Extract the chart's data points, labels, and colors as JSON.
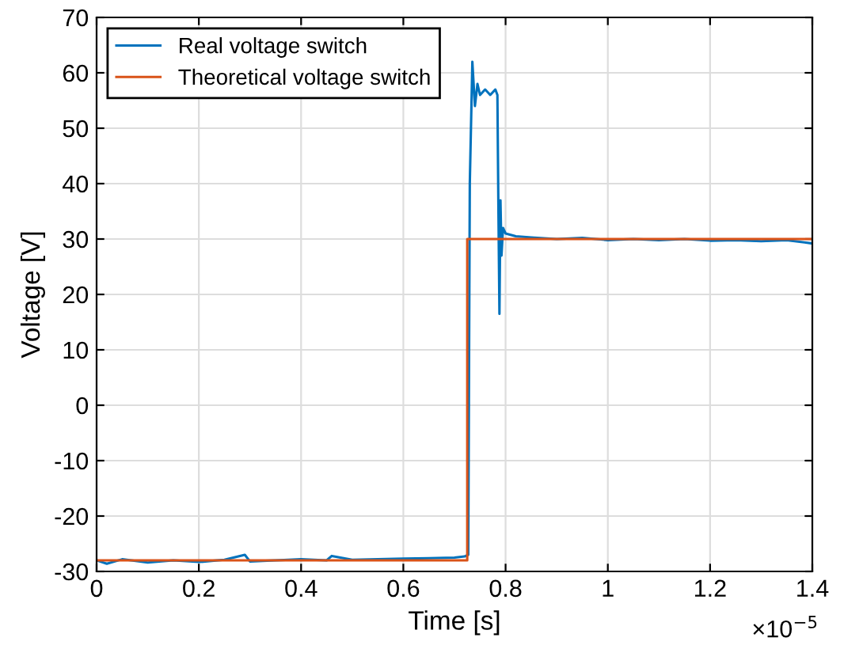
{
  "chart_data": {
    "type": "line",
    "xlabel": "Time [s]",
    "ylabel": "Voltage [V]",
    "xlim": [
      0,
      1.4
    ],
    "xticks": [
      0,
      0.2,
      0.4,
      0.6,
      0.8,
      1,
      1.2,
      1.4
    ],
    "ylim": [
      -30,
      70
    ],
    "yticks": [
      -30,
      -20,
      -10,
      0,
      10,
      20,
      30,
      40,
      50,
      60,
      70
    ],
    "grid": true,
    "legend": "top left",
    "annotations": [
      "×10$^{−5}$"
    ],
    "series": [
      {
        "name": "Real voltage switch",
        "color": "#0072bd",
        "x": [
          0,
          0.02,
          0.05,
          0.1,
          0.15,
          0.2,
          0.25,
          0.29,
          0.3,
          0.35,
          0.4,
          0.45,
          0.46,
          0.5,
          0.55,
          0.6,
          0.65,
          0.7,
          0.72,
          0.727,
          0.73,
          0.735,
          0.74,
          0.745,
          0.75,
          0.76,
          0.77,
          0.78,
          0.784,
          0.786,
          0.788,
          0.79,
          0.792,
          0.795,
          0.8,
          0.82,
          0.85,
          0.9,
          0.95,
          1,
          1.05,
          1.1,
          1.15,
          1.2,
          1.25,
          1.3,
          1.35,
          1.4
        ],
        "values": [
          -28,
          -28.6,
          -27.8,
          -28.4,
          -28,
          -28.3,
          -27.9,
          -27,
          -28.2,
          -28,
          -27.8,
          -28,
          -27.2,
          -27.9,
          -27.8,
          -27.7,
          -27.6,
          -27.5,
          -27.3,
          -27,
          40,
          62,
          54,
          58,
          56,
          57,
          56,
          57,
          56,
          35,
          16.5,
          37,
          27,
          32,
          31,
          30.5,
          30.3,
          30,
          30.2,
          29.8,
          30,
          29.8,
          30,
          29.7,
          29.8,
          29.6,
          29.8,
          29.2
        ]
      },
      {
        "name": "Theoretical voltage switch",
        "color": "#d95319",
        "x": [
          0,
          0.725,
          0.725,
          1.4
        ],
        "values": [
          -28,
          -28,
          30,
          30
        ]
      }
    ]
  }
}
